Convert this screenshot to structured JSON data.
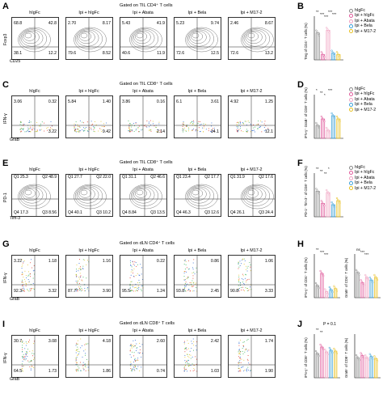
{
  "figure": {
    "groups": [
      "hIgFc",
      "Ipi + hIgFc",
      "Ipi + Abata",
      "Ipi + Bela",
      "Ipi + M17-2"
    ],
    "colors": {
      "hIgFc": "#888888",
      "Ipi + hIgFc": "#e05a9b",
      "Ipi + Abata": "#f0a0c0",
      "Ipi + Bela": "#3aa0d8",
      "Ipi + M17-2": "#e8c020"
    },
    "panels": [
      {
        "letter": "A",
        "title": "Gated on TIL CD4⁺ T cells",
        "y_label": "Foxp3",
        "x_label": "CD25",
        "plots": [
          [
            "68.8",
            "42.8",
            "38.1",
            "12.2"
          ],
          [
            "2.70",
            "8.17",
            "79.6",
            "8.52"
          ],
          [
            "5.43",
            "41.9",
            "40.6",
            "11.9"
          ],
          [
            "5.23",
            "9.74",
            "72.6",
            "12.5"
          ],
          [
            "2.46",
            "8.67",
            "72.6",
            "13.2"
          ]
        ]
      },
      {
        "letter": "C",
        "title": "Gated on TIL CD8⁺ T cells",
        "y_label": "IFN-γ",
        "x_label": "GraB",
        "plots": [
          [
            "3.06",
            "0.32",
            "",
            "3.22"
          ],
          [
            "5.84",
            "1.40",
            "",
            "9.42"
          ],
          [
            "3.86",
            "0.16",
            "",
            "2.14"
          ],
          [
            "6.1",
            "3.61",
            "",
            "14.1"
          ],
          [
            "4.92",
            "1.25",
            "",
            "12.1"
          ]
        ]
      },
      {
        "letter": "E",
        "title": "Gated on TIL CD8⁺ T cells",
        "y_label": "PD-1",
        "x_label": "Tim-3",
        "plots": [
          [
            "Q1 25.3",
            "Q2 48.9",
            "Q4 17.3",
            "Q3 8.56"
          ],
          [
            "Q1 27.7",
            "Q2 22.0",
            "Q4 40.1",
            "Q3 10.2"
          ],
          [
            "Q1 31.1",
            "Q2 46.6",
            "Q4 8.84",
            "Q3 13.5"
          ],
          [
            "Q1 23.4",
            "Q2 17.7",
            "Q4 46.3",
            "Q3 12.6"
          ],
          [
            "Q1 31.9",
            "Q2 17.6",
            "Q4 26.1",
            "Q3 24.4"
          ]
        ]
      },
      {
        "letter": "G",
        "title": "Gated on dLN CD4⁺ T cells",
        "y_label": "IFN-γ",
        "x_label": "GraB",
        "plots": [
          [
            "3.22",
            "1.18",
            "92.3",
            "3.32"
          ],
          [
            "",
            "1.16",
            "87.7",
            "3.90"
          ],
          [
            "",
            "0.22",
            "95.5",
            "1.24"
          ],
          [
            "",
            "0.86",
            "93.8",
            "2.45"
          ],
          [
            "",
            "1.06",
            "90.8",
            "3.33"
          ]
        ]
      },
      {
        "letter": "I",
        "title": "Gated on dLN CD8⁺ T cells",
        "y_label": "IFN-γ",
        "x_label": "GraB",
        "plots": [
          [
            "30.7",
            "3.08",
            "64.5",
            "1.73"
          ],
          [
            "",
            "4.18",
            "",
            "1.86"
          ],
          [
            "",
            "2.60",
            "",
            "0.74"
          ],
          [
            "",
            "2.42",
            "",
            "1.03"
          ],
          [
            "",
            "1.74",
            "",
            "1.90"
          ]
        ]
      }
    ],
    "right_panels": [
      {
        "letter": "B",
        "ylabel": "Treg of CD4⁺ T cells (%)",
        "ylim": [
          0,
          60
        ],
        "ticks": [
          "0",
          "20",
          "40",
          "60"
        ],
        "stars": [
          "**",
          "***",
          "***",
          "***",
          "***"
        ],
        "legend": true
      },
      {
        "letter": "D",
        "ylabel": "IFN-γ⁺ GraB⁺ of CD8⁺ T cells (%)",
        "ylim": [
          0,
          25
        ],
        "ticks": [
          "0",
          "5",
          "10",
          "15",
          "20",
          "25"
        ],
        "stars": [
          "*",
          "**",
          "*",
          "***"
        ],
        "legend": true
      },
      {
        "letter": "F",
        "ylabel": "PD-1⁺ Tim-3⁺ of CD8⁺ T cells (%)",
        "ylim": [
          0,
          60
        ],
        "ticks": [
          "0",
          "20",
          "40",
          "60"
        ],
        "stars": [
          "**",
          "**",
          "**",
          "*"
        ],
        "legend": true
      },
      {
        "letter": "H",
        "ylabel_a": "IFN-γ⁺ of CD4⁺ T cells (%)",
        "ylabel_b": "GraB⁺ of CD4⁺ T cells (%)",
        "stars_a": [
          "**",
          "***",
          "***"
        ],
        "stars_b": [
          "ns",
          "***",
          "***"
        ]
      },
      {
        "letter": "J",
        "ylabel_a": "IFN-γ⁺ of CD8⁺ T cells (%)",
        "ylabel_b": "GraB⁺ of CD8⁺ T cells (%)",
        "annot": "P = 0.1",
        "stars_a": [
          "**",
          "**"
        ]
      }
    ]
  },
  "chart_data": [
    {
      "type": "bar",
      "title": "",
      "ylabel": "Treg of CD4⁺ T cells (%)",
      "categories": [
        "hIgFc",
        "Ipi + hIgFc",
        "Ipi + Abata",
        "Ipi + Bela",
        "Ipi + M17-2"
      ],
      "values": [
        40,
        8,
        44,
        10,
        8
      ],
      "ylim": [
        0,
        60
      ]
    },
    {
      "type": "bar",
      "title": "",
      "ylabel": "IFN-γ⁺ GraB⁺ of CD8⁺ T cells (%)",
      "categories": [
        "hIgFc",
        "Ipi + hIgFc",
        "Ipi + Abata",
        "Ipi + Bela",
        "Ipi + M17-2"
      ],
      "values": [
        8,
        12,
        5,
        14,
        12
      ],
      "ylim": [
        0,
        25
      ]
    },
    {
      "type": "bar",
      "title": "",
      "ylabel": "PD-1⁺ Tim-3⁺ of CD8⁺ T cells (%)",
      "categories": [
        "hIgFc",
        "Ipi + hIgFc",
        "Ipi + Abata",
        "Ipi + Bela",
        "Ipi + M17-2"
      ],
      "values": [
        38,
        20,
        36,
        18,
        24
      ],
      "ylim": [
        0,
        60
      ]
    },
    {
      "type": "bar",
      "title": "",
      "ylabel": "IFN-γ⁺ of CD4⁺ T cells (%)",
      "categories": [
        "hIgFc",
        "Ipi + hIgFc",
        "Ipi + Abata",
        "Ipi + Bela",
        "Ipi + M17-2"
      ],
      "values": [
        1.2,
        2.4,
        0.6,
        0.8,
        0.9
      ],
      "ylim": [
        0,
        4
      ]
    },
    {
      "type": "bar",
      "title": "",
      "ylabel": "GraB⁺ of CD4⁺ T cells (%)",
      "categories": [
        "hIgFc",
        "Ipi + hIgFc",
        "Ipi + Abata",
        "Ipi + Bela",
        "Ipi + M17-2"
      ],
      "values": [
        5,
        3,
        4,
        3.5,
        4
      ],
      "ylim": [
        0,
        8
      ]
    },
    {
      "type": "bar",
      "title": "",
      "ylabel": "IFN-γ⁺ of CD8⁺ T cells (%)",
      "categories": [
        "hIgFc",
        "Ipi + hIgFc",
        "Ipi + Abata",
        "Ipi + Bela",
        "Ipi + M17-2"
      ],
      "values": [
        3.0,
        3.8,
        3.2,
        3.4,
        3.3
      ],
      "ylim": [
        0,
        5
      ]
    },
    {
      "type": "bar",
      "title": "",
      "ylabel": "GraB⁺ of CD8⁺ T cells (%)",
      "categories": [
        "hIgFc",
        "Ipi + hIgFc",
        "Ipi + Abata",
        "Ipi + Bela",
        "Ipi + M17-2"
      ],
      "values": [
        2.0,
        2.2,
        2.0,
        2.1,
        1.9
      ],
      "ylim": [
        0,
        4
      ]
    }
  ]
}
